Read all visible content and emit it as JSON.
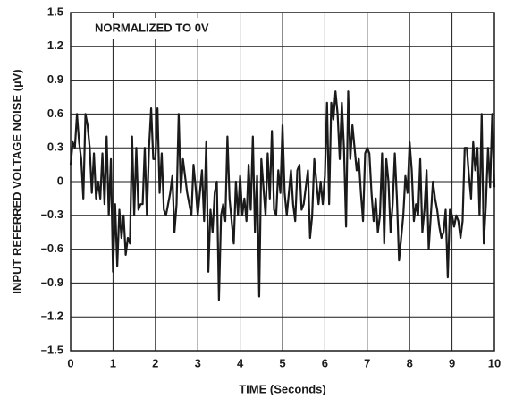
{
  "chart_data": {
    "type": "line",
    "annotation": "NORMALIZED TO 0V",
    "x_label": "TIME (Seconds)",
    "y_label": "INPUT REFERRED VOLTAGE NOISE  (µV)",
    "xlim": [
      0,
      10
    ],
    "xticks": [
      0,
      1,
      2,
      3,
      4,
      5,
      6,
      7,
      8,
      9,
      10
    ],
    "ylim": [
      -1.5,
      1.5
    ],
    "yticks": [
      {
        "value": -1.5,
        "label": "–1.5"
      },
      {
        "value": -1.2,
        "label": "–1.2"
      },
      {
        "value": -0.9,
        "label": "–0.9"
      },
      {
        "value": -0.6,
        "label": "–0.6"
      },
      {
        "value": -0.3,
        "label": "–0.3"
      },
      0,
      0.3,
      0.6,
      0.9,
      1.2,
      1.5
    ],
    "grid": true,
    "x": [
      0,
      0.05,
      0.1,
      0.15,
      0.2,
      0.25,
      0.3,
      0.35,
      0.4,
      0.45,
      0.5,
      0.55,
      0.6,
      0.65,
      0.7,
      0.75,
      0.8,
      0.85,
      0.9,
      0.95,
      1,
      1.05,
      1.1,
      1.15,
      1.2,
      1.25,
      1.3,
      1.35,
      1.4,
      1.45,
      1.5,
      1.55,
      1.6,
      1.65,
      1.7,
      1.75,
      1.8,
      1.85,
      1.9,
      1.95,
      2,
      2.05,
      2.1,
      2.15,
      2.2,
      2.25,
      2.3,
      2.35,
      2.4,
      2.45,
      2.5,
      2.55,
      2.6,
      2.65,
      2.7,
      2.75,
      2.8,
      2.85,
      2.9,
      2.95,
      3,
      3.05,
      3.1,
      3.15,
      3.2,
      3.25,
      3.3,
      3.35,
      3.4,
      3.45,
      3.5,
      3.55,
      3.6,
      3.65,
      3.7,
      3.75,
      3.8,
      3.85,
      3.9,
      3.95,
      4,
      4.05,
      4.1,
      4.15,
      4.2,
      4.25,
      4.3,
      4.35,
      4.4,
      4.45,
      4.5,
      4.55,
      4.6,
      4.65,
      4.7,
      4.75,
      4.8,
      4.85,
      4.9,
      4.95,
      5,
      5.05,
      5.1,
      5.15,
      5.2,
      5.25,
      5.3,
      5.35,
      5.4,
      5.45,
      5.5,
      5.55,
      5.6,
      5.65,
      5.7,
      5.75,
      5.8,
      5.85,
      5.9,
      5.95,
      6,
      6.05,
      6.1,
      6.15,
      6.2,
      6.25,
      6.3,
      6.35,
      6.4,
      6.45,
      6.5,
      6.55,
      6.6,
      6.65,
      6.7,
      6.75,
      6.8,
      6.85,
      6.9,
      6.95,
      7,
      7.05,
      7.1,
      7.15,
      7.2,
      7.25,
      7.3,
      7.35,
      7.4,
      7.45,
      7.5,
      7.55,
      7.6,
      7.65,
      7.7,
      7.75,
      7.8,
      7.85,
      7.9,
      7.95,
      8,
      8.05,
      8.1,
      8.15,
      8.2,
      8.25,
      8.3,
      8.35,
      8.4,
      8.45,
      8.5,
      8.55,
      8.6,
      8.65,
      8.7,
      8.75,
      8.8,
      8.85,
      8.9,
      8.95,
      9,
      9.05,
      9.1,
      9.15,
      9.2,
      9.25,
      9.3,
      9.35,
      9.4,
      9.45,
      9.5,
      9.55,
      9.6,
      9.65,
      9.7,
      9.75,
      9.8,
      9.85,
      9.9,
      9.95,
      10
    ],
    "series": [
      {
        "color": "#1a1a1a",
        "values": [
          0.15,
          0.35,
          0.3,
          0.6,
          0.35,
          0.2,
          -0.15,
          0.6,
          0.5,
          0.3,
          -0.1,
          0.25,
          -0.15,
          0.0,
          -0.15,
          0.25,
          -0.2,
          0.4,
          -0.3,
          0.2,
          -0.8,
          -0.2,
          -0.75,
          -0.25,
          -0.5,
          -0.3,
          -0.65,
          -0.5,
          -0.55,
          0.4,
          -0.3,
          0.3,
          -0.25,
          -0.2,
          -0.2,
          0.3,
          -0.3,
          0.3,
          0.65,
          0.2,
          0.2,
          0.65,
          -0.1,
          0.25,
          -0.25,
          -0.3,
          -0.2,
          -0.1,
          0.05,
          -0.45,
          -0.2,
          0.6,
          -0.1,
          0.2,
          0.05,
          -0.1,
          -0.2,
          -0.3,
          0.15,
          -0.05,
          -0.3,
          -0.1,
          0.1,
          -0.35,
          0.35,
          -0.8,
          -0.25,
          -0.45,
          -0.1,
          0.0,
          -1.05,
          -0.3,
          -0.2,
          -0.35,
          0.4,
          -0.15,
          -0.35,
          -0.55,
          0.0,
          -0.3,
          0.05,
          -0.3,
          -0.15,
          -0.35,
          0.15,
          -0.25,
          0.4,
          -0.45,
          0.05,
          -1.02,
          0.2,
          -0.05,
          -0.3,
          0.25,
          -0.15,
          0.45,
          -0.25,
          -0.3,
          0.1,
          -0.1,
          0.5,
          -0.1,
          -0.3,
          -0.1,
          0.1,
          -0.2,
          -0.35,
          0.1,
          0.15,
          -0.25,
          -0.2,
          -0.05,
          0.1,
          -0.5,
          -0.3,
          0.2,
          0.0,
          -0.2,
          0.0,
          -0.2,
          0.05,
          0.7,
          -0.2,
          0.7,
          0.55,
          0.8,
          0.6,
          0.2,
          0.7,
          0.3,
          -0.4,
          0.8,
          0.2,
          0.5,
          0.3,
          0.1,
          0.2,
          -0.1,
          -0.35,
          0.25,
          0.3,
          0.25,
          -0.1,
          -0.35,
          -0.15,
          -0.45,
          -0.3,
          0.25,
          -0.55,
          0.2,
          0.0,
          -0.45,
          -0.2,
          0.25,
          -0.15,
          -0.7,
          -0.5,
          -0.3,
          0.05,
          -0.1,
          0.35,
          0.1,
          -0.35,
          -0.2,
          -0.3,
          0.2,
          -0.45,
          -0.25,
          0.1,
          -0.6,
          -0.3,
          0.0,
          -0.15,
          -0.25,
          -0.4,
          -0.5,
          -0.45,
          -0.25,
          -0.85,
          -0.25,
          -0.3,
          -0.4,
          -0.3,
          -0.35,
          -0.5,
          -0.35,
          0.3,
          0.3,
          0.05,
          -0.15,
          0.35,
          0.1,
          0.3,
          -0.3,
          0.6,
          -0.55,
          -0.2,
          0.3,
          -0.05,
          0.6,
          -0.05
        ]
      }
    ]
  }
}
